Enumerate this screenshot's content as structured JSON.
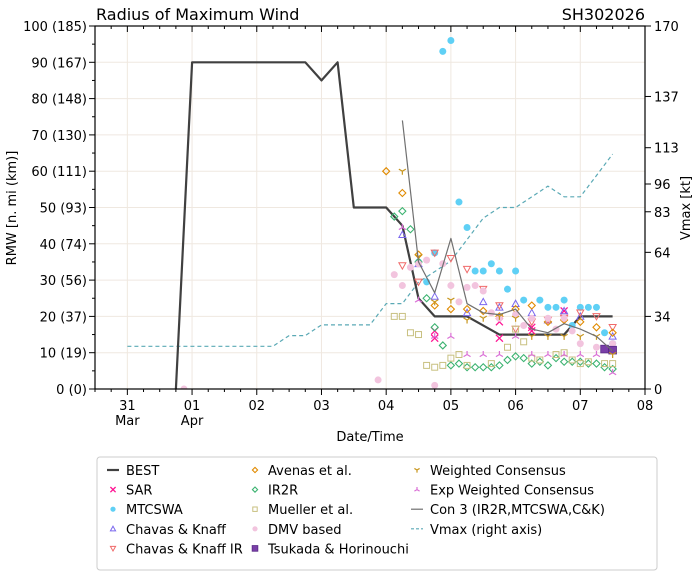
{
  "chart_data": {
    "type": "scatter",
    "title": "Radius of Maximum Wind",
    "title_right": "SH302026",
    "xlabel": "Date/Time",
    "ylabel": "RMW [n. mi (km)]",
    "ylabel_right": "Vmax [kt]",
    "xlim": [
      "03-30 12",
      "04-08 00"
    ],
    "ylim": [
      0,
      100
    ],
    "ylim_right": [
      0,
      170
    ],
    "grid": true,
    "legend_placement": "below",
    "x_ticks": [
      {
        "t": "03-31 00",
        "label": "31",
        "sub": "Mar"
      },
      {
        "t": "04-01 00",
        "label": "01",
        "sub": "Apr"
      },
      {
        "t": "04-02 00",
        "label": "02",
        "sub": ""
      },
      {
        "t": "04-03 00",
        "label": "03",
        "sub": ""
      },
      {
        "t": "04-04 00",
        "label": "04",
        "sub": ""
      },
      {
        "t": "04-05 00",
        "label": "05",
        "sub": ""
      },
      {
        "t": "04-06 00",
        "label": "06",
        "sub": ""
      },
      {
        "t": "04-07 00",
        "label": "07",
        "sub": ""
      },
      {
        "t": "04-08 00",
        "label": "08",
        "sub": ""
      }
    ],
    "y_ticks": [
      {
        "v": 0,
        "label": "0 (0)"
      },
      {
        "v": 10,
        "label": "10 (19)"
      },
      {
        "v": 20,
        "label": "20 (37)"
      },
      {
        "v": 30,
        "label": "30 (56)"
      },
      {
        "v": 40,
        "label": "40 (74)"
      },
      {
        "v": 50,
        "label": "50 (93)"
      },
      {
        "v": 60,
        "label": "60 (111)"
      },
      {
        "v": 70,
        "label": "70 (130)"
      },
      {
        "v": 80,
        "label": "80 (148)"
      },
      {
        "v": 90,
        "label": "90 (167)"
      },
      {
        "v": 100,
        "label": "100 (185)"
      }
    ],
    "y_ticks_right": [
      {
        "v": 0,
        "label": "0"
      },
      {
        "v": 34,
        "label": "34"
      },
      {
        "v": 64,
        "label": "64"
      },
      {
        "v": 83,
        "label": "83"
      },
      {
        "v": 96,
        "label": "96"
      },
      {
        "v": 113,
        "label": "113"
      },
      {
        "v": 137,
        "label": "137"
      },
      {
        "v": 170,
        "label": "170"
      }
    ],
    "series": [
      {
        "name": "BEST",
        "color": "#404040",
        "marker": "line",
        "points": [
          [
            "03-31 18",
            0
          ],
          [
            "04-01 00",
            90
          ],
          [
            "04-02 18",
            90
          ],
          [
            "04-03 00",
            85
          ],
          [
            "04-03 06",
            90
          ],
          [
            "04-03 12",
            50
          ],
          [
            "04-04 00",
            50
          ],
          [
            "04-04 06",
            45
          ],
          [
            "04-04 12",
            25
          ],
          [
            "04-04 18",
            20
          ],
          [
            "04-05 06",
            20
          ],
          [
            "04-05 18",
            15
          ],
          [
            "04-06 18",
            15
          ],
          [
            "04-07 00",
            20
          ],
          [
            "04-07 12",
            20
          ]
        ]
      },
      {
        "name": "SAR",
        "color": "#ff1493",
        "marker": "x",
        "points": [
          [
            "04-04 18",
            16
          ],
          [
            "04-04 18",
            14
          ],
          [
            "04-05 18",
            18.5
          ],
          [
            "04-05 18",
            14
          ],
          [
            "04-06 06",
            17
          ],
          [
            "04-06 06",
            16
          ],
          [
            "04-06 18",
            21.5
          ]
        ]
      },
      {
        "name": "MTCSWA",
        "color": "#5fd0f5",
        "marker": "circle-filled",
        "points": [
          [
            "04-04 21",
            93
          ],
          [
            "04-05 00",
            96
          ],
          [
            "04-05 03",
            51.5
          ],
          [
            "04-05 06",
            44.5
          ],
          [
            "04-04 18",
            37.5
          ],
          [
            "04-04 12",
            35
          ],
          [
            "04-04 15",
            29.5
          ],
          [
            "04-05 09",
            32.5
          ],
          [
            "04-05 12",
            32.5
          ],
          [
            "04-05 15",
            34.5
          ],
          [
            "04-05 18",
            32.5
          ],
          [
            "04-05 21",
            27.5
          ],
          [
            "04-06 00",
            32.5
          ],
          [
            "04-06 03",
            24.5
          ],
          [
            "04-06 09",
            24.5
          ],
          [
            "04-06 12",
            22.5
          ],
          [
            "04-06 15",
            22.5
          ],
          [
            "04-06 18",
            24.5
          ],
          [
            "04-06 21",
            17.5
          ],
          [
            "04-07 00",
            22.5
          ],
          [
            "04-07 03",
            22.5
          ],
          [
            "04-07 06",
            22.5
          ],
          [
            "04-07 09",
            15.5
          ],
          [
            "04-07 12",
            12.5
          ]
        ]
      },
      {
        "name": "Chavas & Knaff",
        "color": "#7b68ee",
        "marker": "triangle-up",
        "points": [
          [
            "04-04 06",
            42.5
          ],
          [
            "04-04 12",
            34.5
          ],
          [
            "04-04 18",
            25.5
          ],
          [
            "04-05 06",
            21
          ],
          [
            "04-05 12",
            24
          ],
          [
            "04-05 18",
            22.5
          ],
          [
            "04-06 00",
            23.5
          ],
          [
            "04-06 06",
            21
          ],
          [
            "04-06 12",
            19
          ],
          [
            "04-06 18",
            21.5
          ],
          [
            "04-07 00",
            20
          ],
          [
            "04-07 12",
            14.5
          ]
        ]
      },
      {
        "name": "Chavas & Knaff IR",
        "color": "#f06a6a",
        "marker": "triangle-down",
        "points": [
          [
            "04-04 06",
            34
          ],
          [
            "04-04 12",
            29.5
          ],
          [
            "04-04 18",
            37.5
          ],
          [
            "04-05 00",
            36
          ],
          [
            "04-05 06",
            33
          ],
          [
            "04-05 12",
            27.5
          ],
          [
            "04-05 18",
            23
          ],
          [
            "04-06 00",
            16.5
          ],
          [
            "04-06 06",
            18.5
          ],
          [
            "04-06 12",
            19
          ],
          [
            "04-06 18",
            19.5
          ],
          [
            "04-07 00",
            21
          ],
          [
            "04-07 06",
            20
          ],
          [
            "04-07 12",
            17
          ]
        ]
      },
      {
        "name": "Avenas et al.",
        "color": "#e08a00",
        "marker": "diamond",
        "points": [
          [
            "04-04 00",
            60
          ],
          [
            "04-04 06",
            54
          ],
          [
            "04-04 12",
            37
          ],
          [
            "04-04 18",
            23
          ],
          [
            "04-05 00",
            22
          ],
          [
            "04-05 06",
            22
          ],
          [
            "04-05 12",
            21.5
          ],
          [
            "04-05 18",
            20
          ],
          [
            "04-06 00",
            22
          ],
          [
            "04-06 06",
            23
          ],
          [
            "04-06 12",
            18.5
          ],
          [
            "04-06 18",
            19
          ],
          [
            "04-07 00",
            18.5
          ],
          [
            "04-07 06",
            17
          ],
          [
            "04-07 12",
            15.5
          ]
        ]
      },
      {
        "name": "IR2R",
        "color": "#3cb371",
        "marker": "diamond",
        "points": [
          [
            "04-04 03",
            47.5
          ],
          [
            "04-04 06",
            49
          ],
          [
            "04-04 09",
            44
          ],
          [
            "04-04 12",
            35
          ],
          [
            "04-04 15",
            25
          ],
          [
            "04-04 18",
            17
          ],
          [
            "04-04 21",
            12
          ],
          [
            "04-05 00",
            6.5
          ],
          [
            "04-05 03",
            7
          ],
          [
            "04-05 06",
            6
          ],
          [
            "04-05 09",
            6
          ],
          [
            "04-05 12",
            6
          ],
          [
            "04-05 15",
            6
          ],
          [
            "04-05 18",
            6.5
          ],
          [
            "04-05 21",
            8
          ],
          [
            "04-06 00",
            9
          ],
          [
            "04-06 03",
            8.5
          ],
          [
            "04-06 06",
            7
          ],
          [
            "04-06 09",
            7.5
          ],
          [
            "04-06 12",
            6.5
          ],
          [
            "04-06 15",
            8.5
          ],
          [
            "04-06 18",
            7.5
          ],
          [
            "04-06 21",
            7.5
          ],
          [
            "04-07 00",
            7.5
          ],
          [
            "04-07 03",
            7
          ],
          [
            "04-07 06",
            7
          ],
          [
            "04-07 09",
            6
          ],
          [
            "04-07 12",
            5.5
          ]
        ]
      },
      {
        "name": "Mueller et al.",
        "color": "#c8c080",
        "marker": "square",
        "points": [
          [
            "04-04 03",
            20
          ],
          [
            "04-04 06",
            20
          ],
          [
            "04-04 09",
            15.5
          ],
          [
            "04-04 12",
            15
          ],
          [
            "04-04 15",
            6.5
          ],
          [
            "04-04 18",
            6
          ],
          [
            "04-04 21",
            6.5
          ],
          [
            "04-05 00",
            8.5
          ],
          [
            "04-05 03",
            9.5
          ],
          [
            "04-05 06",
            6.5
          ],
          [
            "04-05 15",
            7
          ],
          [
            "04-05 21",
            11.5
          ],
          [
            "04-06 00",
            16.5
          ],
          [
            "04-06 03",
            13
          ],
          [
            "04-06 06",
            8.5
          ],
          [
            "04-06 09",
            8
          ],
          [
            "04-06 15",
            9.5
          ],
          [
            "04-06 18",
            10
          ],
          [
            "04-06 21",
            8
          ],
          [
            "04-07 00",
            7
          ],
          [
            "04-07 03",
            7.5
          ],
          [
            "04-07 09",
            7
          ],
          [
            "04-07 12",
            7
          ]
        ]
      },
      {
        "name": "DMV based",
        "color": "#f2c4de",
        "marker": "circle-filled",
        "points": [
          [
            "03-31 21",
            0
          ],
          [
            "04-03 21",
            2.5
          ],
          [
            "04-04 03",
            31.5
          ],
          [
            "04-04 06",
            28.5
          ],
          [
            "04-04 09",
            33.5
          ],
          [
            "04-04 12",
            34.5
          ],
          [
            "04-04 15",
            35.5
          ],
          [
            "04-04 18",
            1
          ],
          [
            "04-04 21",
            34.5
          ],
          [
            "04-05 00",
            28.5
          ],
          [
            "04-05 03",
            24
          ],
          [
            "04-05 06",
            28
          ],
          [
            "04-05 09",
            28.5
          ],
          [
            "04-05 12",
            27
          ],
          [
            "04-05 15",
            21
          ],
          [
            "04-05 18",
            19.5
          ],
          [
            "04-06 00",
            20.5
          ],
          [
            "04-06 03",
            17.5
          ],
          [
            "04-06 06",
            19.5
          ],
          [
            "04-06 12",
            19.5
          ],
          [
            "04-06 15",
            16.5
          ],
          [
            "04-06 18",
            19.5
          ],
          [
            "04-06 21",
            16
          ],
          [
            "04-07 00",
            12.5
          ],
          [
            "04-07 06",
            11.5
          ],
          [
            "04-07 09",
            11
          ],
          [
            "04-07 12",
            12.5
          ]
        ]
      },
      {
        "name": "Tsukada & Horinouchi",
        "color": "#7a3fa8",
        "marker": "square-filled",
        "points": [
          [
            "04-07 09",
            11
          ],
          [
            "04-07 12",
            10.7
          ]
        ]
      },
      {
        "name": "Weighted Consensus",
        "color": "#c8961e",
        "marker": "tri-down",
        "points": [
          [
            "04-04 06",
            60
          ],
          [
            "04-04 12",
            36.5
          ],
          [
            "04-04 18",
            24
          ],
          [
            "04-05 00",
            24.5
          ],
          [
            "04-05 06",
            19
          ],
          [
            "04-05 12",
            19.5
          ],
          [
            "04-05 18",
            20
          ],
          [
            "04-06 00",
            19.5
          ],
          [
            "04-06 06",
            14.5
          ],
          [
            "04-06 12",
            14.5
          ],
          [
            "04-06 18",
            14.5
          ],
          [
            "04-07 00",
            14.5
          ],
          [
            "04-07 06",
            14.5
          ],
          [
            "04-07 12",
            9.5
          ]
        ]
      },
      {
        "name": "Exp Weighted Consensus",
        "color": "#da70d6",
        "marker": "tri-up",
        "points": [
          [
            "04-04 06",
            44.5
          ],
          [
            "04-04 12",
            24.5
          ],
          [
            "04-04 18",
            14.5
          ],
          [
            "04-05 00",
            14.5
          ],
          [
            "04-05 06",
            9.5
          ],
          [
            "04-05 12",
            9.5
          ],
          [
            "04-05 18",
            9.5
          ],
          [
            "04-06 00",
            14.5
          ],
          [
            "04-06 06",
            9.5
          ],
          [
            "04-06 12",
            9.5
          ],
          [
            "04-06 18",
            9.5
          ],
          [
            "04-07 00",
            9.5
          ],
          [
            "04-07 06",
            9.5
          ],
          [
            "04-07 12",
            4.5
          ]
        ]
      },
      {
        "name": "Con 3 (IR2R,MTCSWA,C&K)",
        "color": "#707070",
        "marker": "thin-line",
        "points": [
          [
            "04-04 06",
            74
          ],
          [
            "04-04 12",
            35
          ],
          [
            "04-04 18",
            26.5
          ],
          [
            "04-05 00",
            41.5
          ],
          [
            "04-05 06",
            23.5
          ],
          [
            "04-05 12",
            21
          ],
          [
            "04-05 18",
            20.5
          ],
          [
            "04-06 00",
            22
          ],
          [
            "04-06 06",
            16.5
          ],
          [
            "04-06 12",
            15.5
          ],
          [
            "04-06 18",
            18
          ],
          [
            "04-07 00",
            16.5
          ],
          [
            "04-07 06",
            14.5
          ],
          [
            "04-07 12",
            10.5
          ]
        ]
      },
      {
        "name": "Vmax (right axis)",
        "color": "#5aa9b5",
        "marker": "dashed",
        "axis": "right",
        "points": [
          [
            "03-31 00",
            20
          ],
          [
            "04-02 06",
            20
          ],
          [
            "04-02 12",
            25
          ],
          [
            "04-02 18",
            25
          ],
          [
            "04-03 00",
            30
          ],
          [
            "04-03 18",
            30
          ],
          [
            "04-04 00",
            40
          ],
          [
            "04-04 06",
            40
          ],
          [
            "04-04 12",
            50
          ],
          [
            "04-04 18",
            55
          ],
          [
            "04-05 00",
            60
          ],
          [
            "04-05 06",
            70
          ],
          [
            "04-05 12",
            80
          ],
          [
            "04-05 18",
            85
          ],
          [
            "04-06 00",
            85
          ],
          [
            "04-06 06",
            90
          ],
          [
            "04-06 12",
            95
          ],
          [
            "04-06 18",
            90
          ],
          [
            "04-07 00",
            90
          ],
          [
            "04-07 06",
            100
          ],
          [
            "04-07 12",
            110
          ]
        ]
      }
    ]
  }
}
